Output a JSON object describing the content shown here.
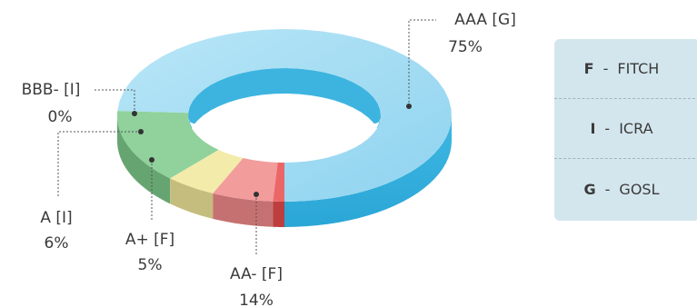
{
  "chart_data": {
    "type": "pie",
    "style": "3d-donut",
    "slices": [
      {
        "label": "AAA [G]",
        "value_label": "75%",
        "value": 75,
        "color": "#5cc3e8"
      },
      {
        "label": "AA- [F]",
        "value_label": "14%",
        "value": 14,
        "color": "#7cc98a"
      },
      {
        "label": "A+ [F]",
        "value_label": "5%",
        "value": 5,
        "color": "#f0e79a"
      },
      {
        "label": "A [I]",
        "value_label": "6%",
        "value": 6,
        "color": "#f08a8a"
      },
      {
        "label": "BBB- [I]",
        "value_label": "0%",
        "value": 0,
        "color": "#e74c4c"
      }
    ]
  },
  "legend": [
    {
      "code": "F",
      "separator": "-",
      "name": "FITCH"
    },
    {
      "code": "I",
      "separator": "-",
      "name": "ICRA"
    },
    {
      "code": "G",
      "separator": "-",
      "name": "GOSL"
    }
  ]
}
